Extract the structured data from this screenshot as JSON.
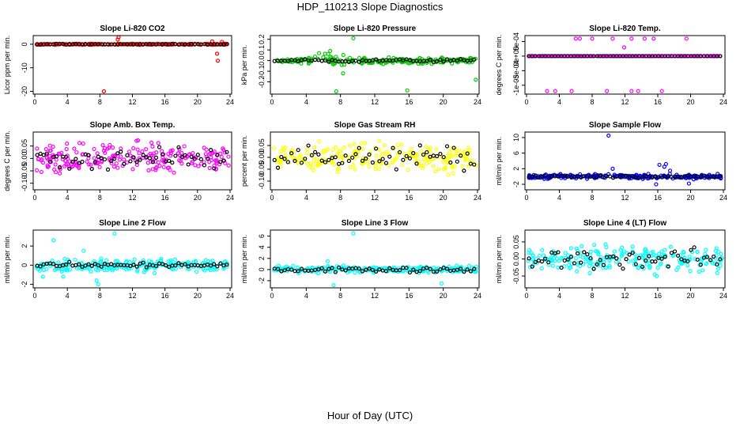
{
  "figure": {
    "title": "HDP_110213  Slope Diagnostics",
    "xlabel": "Hour of Day (UTC)"
  },
  "chart_data": [
    {
      "type": "scatter",
      "title": "Slope Li-820 CO2",
      "ylabel": "Licor ppm per min.",
      "color": "#ff0000",
      "xlim": [
        0,
        24
      ],
      "xticks": [
        0,
        4,
        8,
        12,
        16,
        20,
        24
      ],
      "ylim": [
        -20.5,
        3
      ],
      "yticks": [
        0,
        -10,
        -20
      ],
      "ytick_labels": [
        "0",
        "-10",
        "-20"
      ],
      "noise": 0.15,
      "black_noise": 0.1,
      "outliers": [
        [
          8.5,
          -20
        ],
        [
          10.2,
          2
        ],
        [
          10.3,
          3
        ],
        [
          22.5,
          -7
        ],
        [
          22.4,
          -4
        ],
        [
          21.8,
          1.2
        ],
        [
          23,
          1
        ]
      ]
    },
    {
      "type": "scatter",
      "title": "Slope Li-820 Pressure",
      "ylabel": "kPa per min.",
      "color": "#00cc00",
      "xlim": [
        0,
        24
      ],
      "xticks": [
        0,
        4,
        8,
        12,
        16,
        20,
        24
      ],
      "ylim": [
        -0.3,
        0.22
      ],
      "yticks": [
        -0.2,
        -0.1,
        0,
        0.1,
        0.2
      ],
      "ytick_labels": [
        "-0.2",
        "-0.1",
        "0.0",
        "0.1",
        "0.2"
      ],
      "noise": 0.018,
      "black_noise": 0.01,
      "outliers": [
        [
          9.5,
          0.21
        ],
        [
          7.5,
          -0.29
        ],
        [
          15.8,
          -0.28
        ],
        [
          23.8,
          -0.18
        ],
        [
          5.5,
          0.07
        ],
        [
          6.8,
          0.09
        ],
        [
          8.3,
          -0.12
        ]
      ]
    },
    {
      "type": "scatter",
      "title": "Slope Li-820 Temp.",
      "ylabel": "degrees C per min.",
      "color": "#ff00ff",
      "xlim": [
        0,
        24
      ],
      "xticks": [
        0,
        4,
        8,
        12,
        16,
        20,
        24
      ],
      "ylim": [
        -0.00125,
        0.00065
      ],
      "yticks": [
        -0.001,
        -0.0005,
        0,
        0.0005
      ],
      "ytick_labels": [
        "-1e-03",
        "-5e-04",
        "0e+00",
        "5e-04"
      ],
      "noise": 0,
      "black_noise": 0,
      "outliers": [
        [
          6.5,
          0.0006
        ],
        [
          8,
          0.0006
        ],
        [
          10.5,
          0.0006
        ],
        [
          12.8,
          0.0006
        ],
        [
          15.5,
          0.0006
        ],
        [
          19.5,
          0.0006
        ],
        [
          6,
          0.0006
        ],
        [
          14.4,
          0.0006
        ],
        [
          2.5,
          -0.0012
        ],
        [
          3.5,
          -0.0012
        ],
        [
          5.5,
          -0.0012
        ],
        [
          9.8,
          -0.0012
        ],
        [
          12.8,
          -0.0012
        ],
        [
          13.6,
          -0.0012
        ],
        [
          16.5,
          -0.0012
        ],
        [
          11.9,
          0.0003
        ]
      ]
    },
    {
      "type": "scatter",
      "title": "Slope Amb. Box Temp.",
      "ylabel": "degrees C per min.",
      "color": "#ff00ff",
      "xlim": [
        0,
        24
      ],
      "xticks": [
        0,
        4,
        8,
        12,
        16,
        20,
        24
      ],
      "ylim": [
        -0.12,
        0.1
      ],
      "yticks": [
        -0.1,
        -0.05,
        0,
        0.05
      ],
      "ytick_labels": [
        "-0.10",
        "-0.05",
        "0.00",
        "0.05"
      ],
      "noise": 0.04,
      "black_noise": 0.03,
      "outliers": []
    },
    {
      "type": "scatter",
      "title": "Slope Gas Stream RH",
      "ylabel": "percent per min.",
      "color": "#ffff00",
      "xlim": [
        0,
        24
      ],
      "xticks": [
        0,
        4,
        8,
        12,
        16,
        20,
        24
      ],
      "ylim": [
        -0.13,
        0.1
      ],
      "yticks": [
        -0.1,
        -0.05,
        0,
        0.05
      ],
      "ytick_labels": [
        "-0.10",
        "-0.05",
        "0.00",
        "0.05"
      ],
      "noise": 0.045,
      "black_noise": 0.03,
      "outliers": []
    },
    {
      "type": "scatter",
      "title": "Slope Sample Flow",
      "ylabel": "ml/min per min.",
      "color": "#0000ff",
      "xlim": [
        0,
        24
      ],
      "xticks": [
        0,
        4,
        8,
        12,
        16,
        20,
        24
      ],
      "ylim": [
        -3,
        11
      ],
      "yticks": [
        -2,
        2,
        6,
        10
      ],
      "ytick_labels": [
        "-2",
        "2",
        "6",
        "10"
      ],
      "noise": 0.4,
      "black_noise": 0.2,
      "outliers": [
        [
          10,
          10.5
        ],
        [
          16.2,
          3
        ],
        [
          16.8,
          2.5
        ],
        [
          17.5,
          1.5
        ],
        [
          15.8,
          -2
        ],
        [
          19.8,
          -1.8
        ],
        [
          10.5,
          2
        ],
        [
          17,
          3.2
        ]
      ]
    },
    {
      "type": "scatter",
      "title": "Slope Line 2 Flow",
      "ylabel": "ml/min per min.",
      "color": "#00ffff",
      "xlim": [
        0,
        24
      ],
      "xticks": [
        0,
        4,
        8,
        12,
        16,
        20,
        24
      ],
      "ylim": [
        -2.2,
        3.5
      ],
      "yticks": [
        -2,
        0,
        2
      ],
      "ytick_labels": [
        "-2",
        "0",
        "2"
      ],
      "noise": 0.45,
      "black_noise": 0.2,
      "outliers": [
        [
          2.3,
          2.6
        ],
        [
          9.8,
          3.3
        ],
        [
          7.8,
          -2
        ],
        [
          7.6,
          -1.6
        ],
        [
          6,
          1.5
        ],
        [
          3.5,
          -1.2
        ],
        [
          1,
          -1.2
        ]
      ]
    },
    {
      "type": "scatter",
      "title": "Slope Line 3 Flow",
      "ylabel": "ml/min per min.",
      "color": "#00ffff",
      "xlim": [
        0,
        24
      ],
      "xticks": [
        0,
        4,
        8,
        12,
        16,
        20,
        24
      ],
      "ylim": [
        -3,
        6.8
      ],
      "yticks": [
        -2,
        0,
        2,
        4,
        6
      ],
      "ytick_labels": [
        "-2",
        "0",
        "2",
        "4",
        "6"
      ],
      "noise": 0.4,
      "black_noise": 0.3,
      "outliers": [
        [
          9.5,
          6.5
        ],
        [
          19.8,
          -2.5
        ],
        [
          7.2,
          -2.8
        ],
        [
          6.5,
          1.5
        ]
      ]
    },
    {
      "type": "scatter",
      "title": "Slope Line 4 (LT) Flow",
      "ylabel": "ml/min per min.",
      "color": "#00ffff",
      "xlim": [
        0,
        24
      ],
      "xticks": [
        0,
        4,
        8,
        12,
        16,
        20,
        24
      ],
      "ylim": [
        -0.08,
        0.08
      ],
      "yticks": [
        -0.05,
        0,
        0.05
      ],
      "ytick_labels": [
        "-0.05",
        "0.00",
        "0.05"
      ],
      "noise": 0.028,
      "black_noise": 0.02,
      "outliers": []
    }
  ]
}
